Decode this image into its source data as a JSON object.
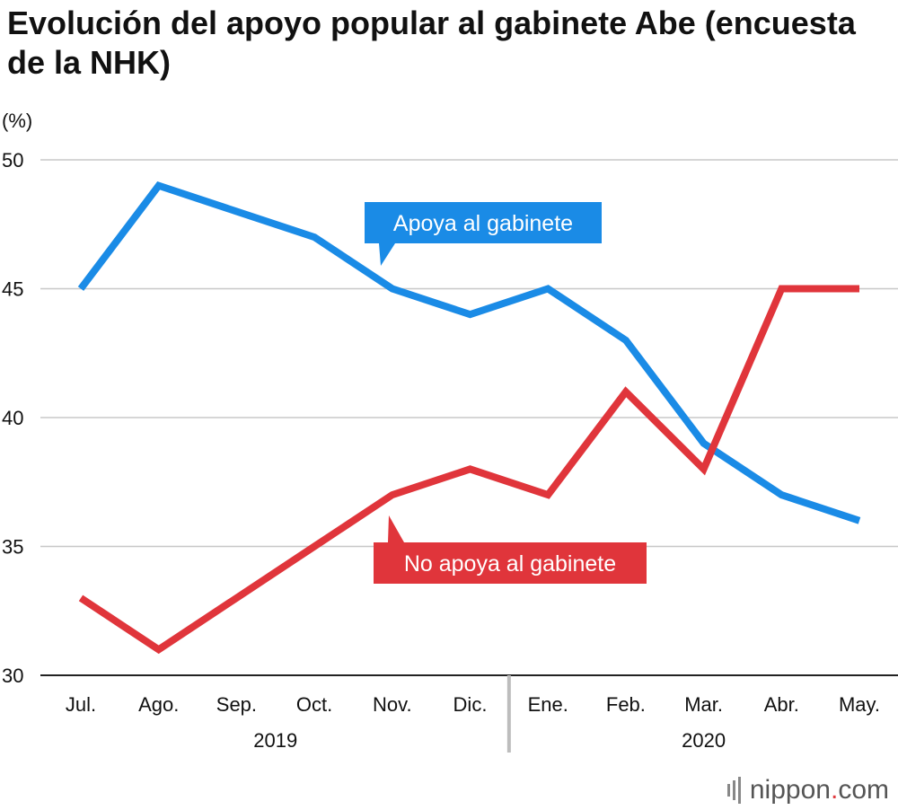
{
  "title": "Evolución del apoyo popular al gabinete Abe (encuesta de la NHK)",
  "brand": {
    "name": "nippon",
    "dot": ".",
    "tld": "com",
    "icon": "sound-bars-icon"
  },
  "chart_data": {
    "type": "line",
    "ylabel": "(%)",
    "ylim": [
      30,
      50
    ],
    "yticks": [
      30,
      35,
      40,
      45,
      50
    ],
    "grid": true,
    "categories": [
      "Jul.",
      "Ago.",
      "Sep.",
      "Oct.",
      "Nov.",
      "Dic.",
      "Ene.",
      "Feb.",
      "Mar.",
      "Abr.",
      "May."
    ],
    "year_groups": [
      {
        "label": "2019",
        "from": 0,
        "to": 5
      },
      {
        "label": "2020",
        "from": 6,
        "to": 10
      }
    ],
    "series": [
      {
        "name": "Apoya al gabinete",
        "color": "#1a8be6",
        "values": [
          45,
          49,
          48,
          47,
          45,
          44,
          45,
          43,
          39,
          37,
          36
        ]
      },
      {
        "name": "No apoya al gabinete",
        "color": "#e0353b",
        "values": [
          33,
          31,
          33,
          35,
          37,
          38,
          37,
          41,
          38,
          45,
          45
        ]
      }
    ]
  }
}
